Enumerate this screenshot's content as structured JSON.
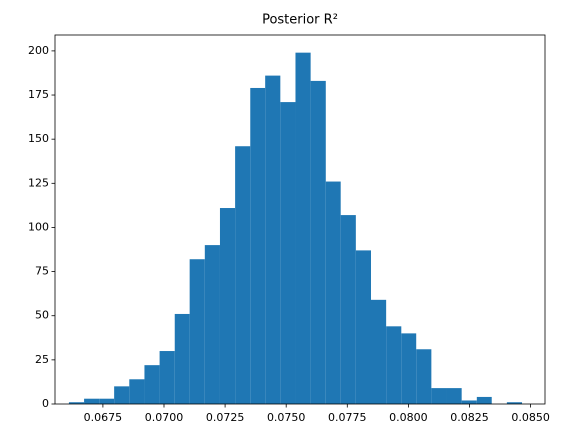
{
  "chart_data": {
    "type": "histogram",
    "title": "Posterior R²",
    "bins": [
      0.06611,
      0.06673,
      0.06735,
      0.06796,
      0.06858,
      0.0692,
      0.06982,
      0.07044,
      0.07105,
      0.07167,
      0.07229,
      0.07291,
      0.07353,
      0.07414,
      0.07476,
      0.07538,
      0.076,
      0.07662,
      0.07723,
      0.07785,
      0.07847,
      0.07909,
      0.07971,
      0.08032,
      0.08094,
      0.08156,
      0.08218,
      0.0828,
      0.08341,
      0.08403,
      0.08465
    ],
    "values": [
      1,
      3,
      3,
      10,
      14,
      22,
      30,
      51,
      82,
      90,
      111,
      146,
      179,
      186,
      171,
      199,
      183,
      126,
      107,
      87,
      59,
      44,
      40,
      31,
      9,
      9,
      2,
      4,
      0,
      1
    ],
    "color": "#1f77b4",
    "xlim": [
      0.06554,
      0.08559
    ],
    "xticks": [
      {
        "value": 0.0675,
        "label": "0.0675"
      },
      {
        "value": 0.07,
        "label": "0.0700"
      },
      {
        "value": 0.0725,
        "label": "0.0725"
      },
      {
        "value": 0.075,
        "label": "0.0750"
      },
      {
        "value": 0.0775,
        "label": "0.0775"
      },
      {
        "value": 0.08,
        "label": "0.0800"
      },
      {
        "value": 0.0825,
        "label": "0.0825"
      },
      {
        "value": 0.085,
        "label": "0.0850"
      }
    ],
    "ylim": [
      0,
      209
    ],
    "yticks": [
      0,
      25,
      50,
      75,
      100,
      125,
      150,
      175,
      200
    ]
  }
}
